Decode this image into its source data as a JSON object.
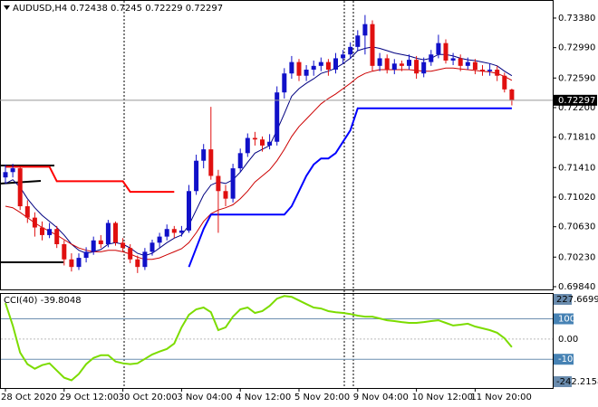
{
  "chart_data": {
    "type": "candlestick",
    "title": "AUDUSD,H4",
    "categories": [
      "28 Oct 2020",
      null,
      null,
      null,
      null,
      null,
      null,
      null,
      "29 Oct 12:00",
      null,
      null,
      null,
      null,
      null,
      null,
      null,
      "30 Oct 20:00",
      null,
      null,
      null,
      null,
      null,
      null,
      null,
      "3 Nov 04:00",
      null,
      null,
      null,
      null,
      null,
      null,
      null,
      "4 Nov 12:00",
      null,
      null,
      null,
      null,
      null,
      null,
      null,
      "5 Nov 20:00",
      null,
      null,
      null,
      null,
      null,
      null,
      null,
      "9 Nov 04:00",
      null,
      null,
      null,
      null,
      null,
      null,
      null,
      "10 Nov 12:00",
      null,
      null,
      null,
      null,
      null,
      null,
      null,
      "11 Nov 20:00",
      null,
      null,
      null,
      null,
      null
    ],
    "open": [
      0.7128,
      0.7135,
      0.714,
      0.709,
      0.7075,
      0.7062,
      0.7052,
      0.706,
      0.704,
      0.702,
      0.701,
      0.7022,
      0.703,
      0.7045,
      0.704,
      0.7068,
      0.7042,
      0.7035,
      0.702,
      0.701,
      0.703,
      0.7042,
      0.705,
      0.706,
      0.7055,
      0.7058,
      0.711,
      0.715,
      0.7165,
      0.713,
      0.711,
      0.71,
      0.714,
      0.716,
      0.718,
      0.7178,
      0.717,
      0.7175,
      0.724,
      0.7265,
      0.728,
      0.7262,
      0.727,
      0.7275,
      0.728,
      0.727,
      0.7285,
      0.729,
      0.73,
      0.7315,
      0.733,
      0.7275,
      0.7285,
      0.727,
      0.7278,
      0.7275,
      0.7283,
      0.7265,
      0.728,
      0.729,
      0.7305,
      0.7282,
      0.7285,
      0.7275,
      0.728,
      0.727,
      0.7268,
      0.727,
      0.7262,
      0.72438
    ],
    "high": [
      0.7145,
      0.7146,
      0.7143,
      0.7098,
      0.7082,
      0.707,
      0.7068,
      0.7064,
      0.7045,
      0.7028,
      0.7028,
      0.7036,
      0.705,
      0.7052,
      0.7072,
      0.707,
      0.7048,
      0.704,
      0.7025,
      0.7035,
      0.7046,
      0.7055,
      0.7066,
      0.7064,
      0.7064,
      0.7118,
      0.7158,
      0.7172,
      0.7221,
      0.7138,
      0.7118,
      0.7146,
      0.7166,
      0.7186,
      0.7188,
      0.7182,
      0.7185,
      0.7248,
      0.7272,
      0.7288,
      0.7284,
      0.7276,
      0.7282,
      0.7286,
      0.7284,
      0.7292,
      0.7296,
      0.7306,
      0.7322,
      0.7342,
      0.7335,
      0.7292,
      0.729,
      0.7284,
      0.7282,
      0.729,
      0.7288,
      0.7286,
      0.7296,
      0.7316,
      0.731,
      0.7292,
      0.729,
      0.7286,
      0.7284,
      0.7276,
      0.7278,
      0.7275,
      0.7266,
      0.7245
    ],
    "low": [
      0.712,
      0.7128,
      0.7085,
      0.7068,
      0.705,
      0.7045,
      0.7048,
      0.7035,
      0.7012,
      0.7004,
      0.7006,
      0.7016,
      0.7026,
      0.7035,
      0.7036,
      0.7038,
      0.703,
      0.7015,
      0.7002,
      0.7006,
      0.7025,
      0.7036,
      0.7045,
      0.7048,
      0.705,
      0.7055,
      0.7105,
      0.714,
      0.7125,
      0.7055,
      0.709,
      0.7095,
      0.7135,
      0.7155,
      0.717,
      0.7162,
      0.7165,
      0.717,
      0.7232,
      0.7258,
      0.7255,
      0.7255,
      0.7262,
      0.7268,
      0.7262,
      0.7265,
      0.7278,
      0.7284,
      0.7295,
      0.729,
      0.7268,
      0.7268,
      0.7265,
      0.7264,
      0.7268,
      0.727,
      0.7258,
      0.726,
      0.7275,
      0.7285,
      0.7278,
      0.7276,
      0.7268,
      0.727,
      0.7264,
      0.7262,
      0.7262,
      0.7255,
      0.724,
      0.72229
    ],
    "close": [
      0.7135,
      0.714,
      0.709,
      0.7075,
      0.7062,
      0.7052,
      0.706,
      0.704,
      0.702,
      0.701,
      0.7022,
      0.703,
      0.7045,
      0.704,
      0.7068,
      0.7042,
      0.7035,
      0.702,
      0.701,
      0.703,
      0.7042,
      0.705,
      0.706,
      0.7055,
      0.7058,
      0.711,
      0.715,
      0.7165,
      0.713,
      0.711,
      0.71,
      0.714,
      0.716,
      0.718,
      0.7178,
      0.717,
      0.7175,
      0.724,
      0.7265,
      0.728,
      0.7262,
      0.727,
      0.7275,
      0.728,
      0.727,
      0.7285,
      0.729,
      0.73,
      0.7315,
      0.733,
      0.7275,
      0.7285,
      0.727,
      0.7278,
      0.7275,
      0.7283,
      0.7265,
      0.728,
      0.729,
      0.7305,
      0.7282,
      0.7285,
      0.7275,
      0.728,
      0.727,
      0.7268,
      0.727,
      0.7262,
      0.7244,
      0.72297
    ],
    "up_color": "#1010c8",
    "down_color": "#e01010",
    "ylim": [
      0.69804,
      0.73618
    ],
    "yticks": [
      {
        "value": 0.7338,
        "label": "0.73380"
      },
      {
        "value": 0.7299,
        "label": "0.72990"
      },
      {
        "value": 0.7259,
        "label": "0.72590"
      },
      {
        "value": 0.722,
        "label": "0.72200"
      },
      {
        "value": 0.7181,
        "label": "0.71810"
      },
      {
        "value": 0.7141,
        "label": "0.71410"
      },
      {
        "value": 0.7102,
        "label": "0.71020"
      },
      {
        "value": 0.7063,
        "label": "0.70630"
      },
      {
        "value": 0.7023,
        "label": "0.70230"
      },
      {
        "value": 0.6984,
        "label": "0.69840"
      }
    ],
    "overlays": [
      {
        "color": "#000080",
        "width": 1,
        "values": [
          0.712,
          0.7125,
          0.7115,
          0.71,
          0.7088,
          0.7078,
          0.707,
          0.7062,
          0.7052,
          0.704,
          0.7032,
          0.7028,
          0.703,
          0.7033,
          0.704,
          0.7042,
          0.704,
          0.7035,
          0.7028,
          0.7025,
          0.7028,
          0.7035,
          0.7042,
          0.7048,
          0.7052,
          0.7065,
          0.7085,
          0.7105,
          0.7118,
          0.7122,
          0.712,
          0.7125,
          0.7135,
          0.7148,
          0.716,
          0.7165,
          0.717,
          0.719,
          0.7212,
          0.7235,
          0.7245,
          0.7252,
          0.7258,
          0.7265,
          0.7268,
          0.7272,
          0.7278,
          0.7285,
          0.7295,
          0.7298,
          0.73,
          0.7298,
          0.7295,
          0.7292,
          0.729,
          0.7288,
          0.7285,
          0.7283,
          0.7285,
          0.729,
          0.729,
          0.7288,
          0.7285,
          0.7283,
          0.7282,
          0.728,
          0.7278,
          0.7275,
          0.7268,
          0.7262
        ]
      },
      {
        "color": "#cc0000",
        "width": 1,
        "values": [
          0.709,
          0.7088,
          0.7082,
          0.7075,
          0.7068,
          0.7062,
          0.7057,
          0.7052,
          0.7046,
          0.704,
          0.7035,
          0.7032,
          0.703,
          0.703,
          0.7032,
          0.7032,
          0.703,
          0.7027,
          0.7023,
          0.702,
          0.702,
          0.7022,
          0.7026,
          0.703,
          0.7034,
          0.7042,
          0.7055,
          0.707,
          0.708,
          0.7085,
          0.7088,
          0.7092,
          0.71,
          0.711,
          0.7122,
          0.713,
          0.7138,
          0.715,
          0.7165,
          0.7182,
          0.7195,
          0.7205,
          0.7215,
          0.7225,
          0.7232,
          0.7238,
          0.7245,
          0.7252,
          0.726,
          0.7265,
          0.7268,
          0.727,
          0.727,
          0.727,
          0.727,
          0.727,
          0.7269,
          0.7268,
          0.7268,
          0.727,
          0.7272,
          0.7272,
          0.7271,
          0.727,
          0.7269,
          0.7268,
          0.7267,
          0.7265,
          0.7261,
          0.7256
        ]
      },
      {
        "color": "#0000ff",
        "width": 2,
        "values": [
          null,
          null,
          null,
          null,
          null,
          null,
          null,
          null,
          null,
          null,
          null,
          null,
          null,
          null,
          null,
          null,
          null,
          null,
          null,
          null,
          null,
          null,
          null,
          null,
          null,
          0.701,
          0.7035,
          0.706,
          0.7079,
          0.7079,
          0.7079,
          0.7079,
          0.7079,
          0.7079,
          0.7079,
          0.7079,
          0.7079,
          0.7079,
          0.7079,
          0.709,
          0.711,
          0.713,
          0.7145,
          0.7153,
          0.7153,
          0.716,
          0.7175,
          0.719,
          0.7219,
          0.7219,
          0.7219,
          0.7219,
          0.7219,
          0.7219,
          0.7219,
          0.7219,
          0.7219,
          0.7219,
          0.7219,
          0.7219,
          0.7219,
          0.7219,
          0.7219,
          0.7219,
          0.7219,
          0.7219,
          0.7219,
          0.7219,
          0.7219,
          0.7219
        ]
      },
      {
        "color": "#ff0000",
        "width": 2,
        "values": [
          0.7142,
          0.7142,
          0.7142,
          0.7142,
          0.7142,
          0.7142,
          0.7142,
          0.7123,
          0.7123,
          0.7123,
          0.7123,
          0.7123,
          0.7123,
          0.7123,
          0.7123,
          0.7123,
          0.7123,
          0.7109,
          0.7109,
          0.7109,
          0.7109,
          0.7109,
          0.7109,
          0.7109,
          null,
          null,
          null,
          null,
          null,
          null,
          null,
          null,
          null,
          null,
          null,
          null,
          null,
          null,
          null,
          null,
          null,
          null,
          null,
          null,
          null,
          null,
          null,
          null,
          null,
          null,
          null,
          null,
          null,
          null,
          null,
          null,
          null,
          null,
          null,
          null,
          null,
          null,
          null,
          null,
          null,
          null,
          null,
          null,
          null,
          null
        ]
      }
    ],
    "cci": {
      "label": "CCI(40)",
      "color": "#7cdc00",
      "values": [
        178,
        67,
        -67,
        -124,
        -147,
        -129,
        -120,
        -156,
        -191,
        -204,
        -173,
        -124,
        -93,
        -80,
        -80,
        -111,
        -120,
        -124,
        -120,
        -98,
        -76,
        -62,
        -49,
        -22,
        58,
        120,
        147,
        156,
        133,
        44,
        58,
        111,
        147,
        156,
        129,
        138,
        164,
        200,
        213,
        209,
        191,
        173,
        156,
        151,
        138,
        133,
        129,
        124,
        116,
        111,
        111,
        102,
        93,
        89,
        84,
        80,
        80,
        84,
        89,
        93,
        80,
        67,
        71,
        76,
        62,
        53,
        44,
        31,
        4,
        -39.8048
      ],
      "ylim": [
        -242.2158,
        227.6699
      ],
      "yticks": [
        100,
        {
          "value": 0,
          "label": "0.00"
        },
        -100
      ]
    }
  }
}
